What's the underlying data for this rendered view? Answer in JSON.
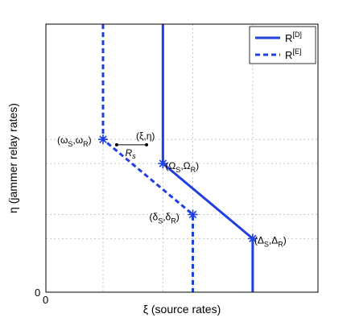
{
  "chart_data": {
    "type": "line",
    "xlabel": "ξ (source rates)",
    "ylabel": "η (jammer relay rates)",
    "x_ticks": [
      "0"
    ],
    "y_ticks": [
      "0"
    ],
    "xlim": [
      0,
      10
    ],
    "ylim": [
      0,
      10
    ],
    "grid": true,
    "legend_position": "top-right",
    "colors": {
      "series": "#1f3fe0",
      "grid": "#bbbbbb",
      "axes": "#000000"
    },
    "series": [
      {
        "name": "R",
        "name_sup": "[D]",
        "style": "solid",
        "points": [
          [
            4.3,
            11.5
          ],
          [
            4.3,
            4.8
          ],
          [
            7.6,
            2.0
          ],
          [
            7.6,
            0
          ]
        ]
      },
      {
        "name": "R",
        "name_sup": "[E]",
        "style": "dashed",
        "points": [
          [
            2.1,
            11.5
          ],
          [
            2.1,
            5.7
          ],
          [
            5.4,
            2.9
          ],
          [
            5.4,
            0
          ]
        ]
      }
    ],
    "annotations": [
      {
        "id": "omega",
        "text": "(ω",
        "sub1": "S",
        "mid": ",ω",
        "sub2": "R",
        "end": ")",
        "x": 2.1,
        "y": 5.7,
        "anchor": "left"
      },
      {
        "id": "Omega",
        "text": "(Ω",
        "sub1": "S",
        "mid": ",Ω",
        "sub2": "R",
        "end": ")",
        "x": 4.3,
        "y": 4.8,
        "anchor": "right"
      },
      {
        "id": "delta",
        "text": "(δ",
        "sub1": "S",
        "mid": ",δ",
        "sub2": "R",
        "end": ")",
        "x": 5.4,
        "y": 2.9,
        "anchor": "left"
      },
      {
        "id": "Delta",
        "text": "(Δ",
        "sub1": "S",
        "mid": ",Δ",
        "sub2": "R",
        "end": ")",
        "x": 7.6,
        "y": 2.0,
        "anchor": "right"
      }
    ],
    "point_label": "(ξ,η)",
    "point": [
      3.7,
      5.5
    ],
    "distance_label": "R",
    "distance_sub": "s",
    "distance_from": [
      2.6,
      5.5
    ]
  }
}
